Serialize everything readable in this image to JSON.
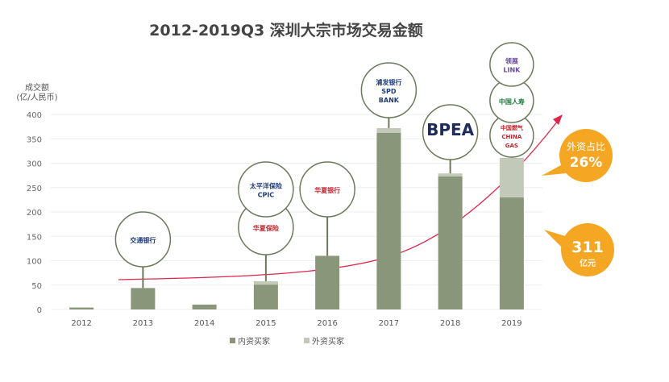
{
  "chart_data": {
    "type": "bar",
    "stacked": true,
    "title": "2012-2019Q3 深圳大宗市场交易金额",
    "ylabel": [
      "成交额",
      "(亿/人民币)"
    ],
    "xlabel": "",
    "categories": [
      "2012",
      "2013",
      "2014",
      "2015",
      "2016",
      "2017",
      "2018",
      "2019"
    ],
    "ylim": [
      0,
      400
    ],
    "yticks": [
      0,
      50,
      100,
      150,
      200,
      250,
      300,
      350,
      400
    ],
    "grid": true,
    "legend_position": "bottom",
    "series": [
      {
        "name": "内资买家",
        "color": "#8a967a",
        "values": [
          4,
          44,
          10,
          51,
          110,
          362,
          273,
          230
        ]
      },
      {
        "name": "外资买家",
        "color": "#c2c9b8",
        "values": [
          0,
          0,
          0,
          7,
          0,
          10,
          6,
          81
        ]
      }
    ],
    "trend_arrow_color": "#e0264a",
    "annotations": [
      {
        "label": "外资占比",
        "value": "26%",
        "color": "#f5a623"
      },
      {
        "label": "亿元",
        "value": "311",
        "color": "#f5a623"
      }
    ],
    "buyer_logos": [
      {
        "year": "2013",
        "logos": [
          "交通银行"
        ]
      },
      {
        "year": "2015",
        "logos": [
          "太平洋保险 CPIC",
          "华夏保险"
        ]
      },
      {
        "year": "2016",
        "logos": [
          "华夏银行"
        ]
      },
      {
        "year": "2017",
        "logos": [
          "浦发银行 SPD BANK"
        ]
      },
      {
        "year": "2018",
        "logos": [
          "BPEA"
        ]
      },
      {
        "year": "2019",
        "logos": [
          "领展 LINK",
          "中国人寿",
          "中国燃气 CHINA GAS"
        ]
      }
    ]
  }
}
